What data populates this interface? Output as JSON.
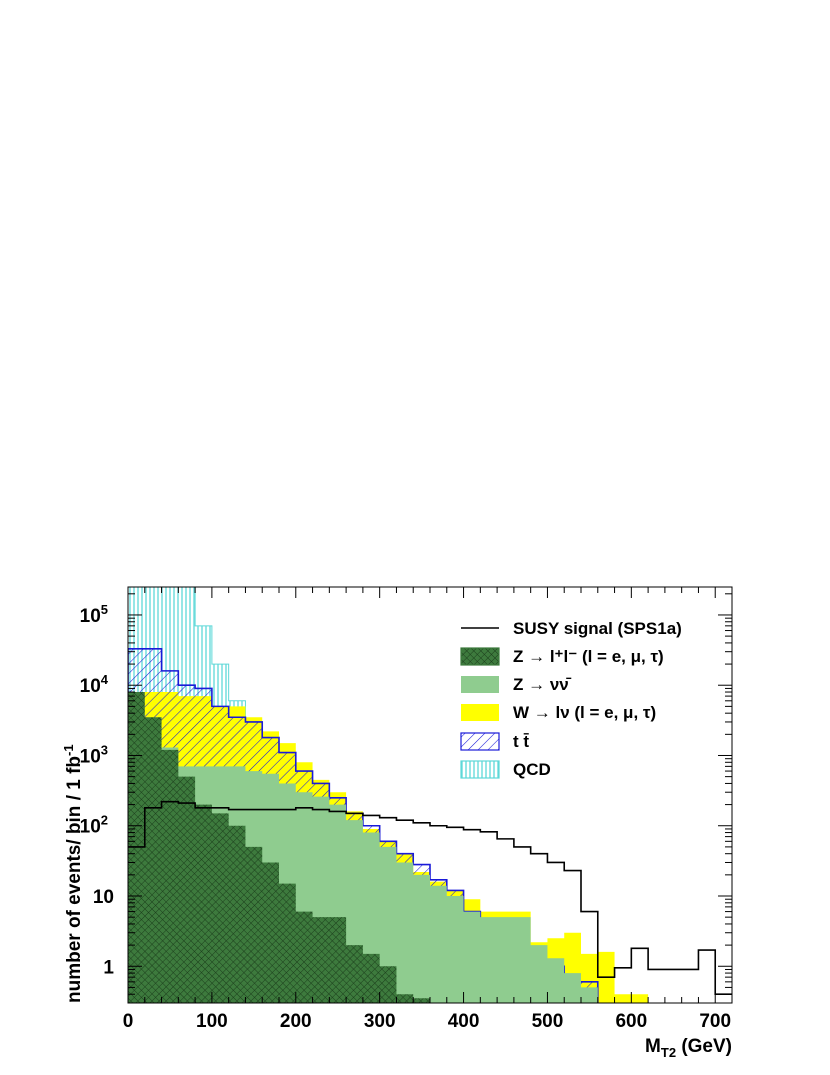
{
  "chart_data": {
    "type": "histogram",
    "x_bin_edges": [
      0,
      20,
      40,
      60,
      80,
      100,
      120,
      140,
      160,
      180,
      200,
      220,
      240,
      260,
      280,
      300,
      320,
      340,
      360,
      380,
      400,
      420,
      440,
      460,
      480,
      500,
      520,
      540,
      560,
      580,
      600,
      620,
      640,
      660,
      680,
      700,
      720
    ],
    "xlabel": "M",
    "xlabel_sub": "T2",
    "xlabel_unit": " (GeV)",
    "ylabel": "number of events/ bin / 1 fb",
    "ylabel_sup": "-1",
    "y_scale": "log",
    "xlim": [
      0,
      720
    ],
    "ylim": [
      0.3,
      250000
    ],
    "x_ticks": [
      "0",
      "100",
      "200",
      "300",
      "400",
      "500",
      "600",
      "700"
    ],
    "x_tick_values": [
      0,
      100,
      200,
      300,
      400,
      500,
      600,
      700
    ],
    "y_ticks": [
      {
        "value": 1,
        "base": "1",
        "exp": ""
      },
      {
        "value": 10,
        "base": "10",
        "exp": ""
      },
      {
        "value": 100,
        "base": "10",
        "exp": "2"
      },
      {
        "value": 1000,
        "base": "10",
        "exp": "3"
      },
      {
        "value": 10000,
        "base": "10",
        "exp": "4"
      },
      {
        "value": 100000,
        "base": "10",
        "exp": "5"
      }
    ],
    "legend_position": "top-right",
    "series": [
      {
        "id": "qcd",
        "name": "QCD",
        "style": "vertical-hatch",
        "color": "#5ed8d8",
        "values": [
          250000,
          250000,
          250000,
          250000,
          70000,
          20000,
          6000,
          2500,
          0,
          0,
          0,
          0,
          0,
          0,
          0,
          0,
          0,
          0,
          0,
          0,
          0,
          0,
          0,
          0,
          0,
          0,
          0,
          0,
          0,
          0,
          0,
          0,
          0,
          0,
          0,
          0
        ]
      },
      {
        "id": "w",
        "name": "W → lν (l = e, μ, τ)",
        "style": "fill",
        "color": "#ffff00",
        "values": [
          8000,
          8000,
          8000,
          7000,
          7000,
          5000,
          5000,
          3500,
          2200,
          1500,
          800,
          450,
          300,
          160,
          90,
          60,
          40,
          22,
          16,
          12,
          9,
          6,
          6,
          6,
          2.2,
          2.5,
          3,
          1.5,
          1.6,
          0.4,
          0.4,
          0,
          0,
          0,
          0,
          0
        ]
      },
      {
        "id": "tt",
        "name": "t t̄",
        "style": "diagonal-hatch",
        "color": "#1a1ad8",
        "values": [
          33000,
          33000,
          16000,
          10000,
          9000,
          5000,
          3500,
          3000,
          1800,
          1100,
          600,
          400,
          250,
          150,
          100,
          60,
          40,
          28,
          17,
          12,
          6,
          3.5,
          2,
          1.4,
          1.2,
          1,
          0.6,
          0.6,
          0,
          0,
          0,
          0,
          0,
          0,
          0,
          0
        ]
      },
      {
        "id": "znn",
        "name": "Z → νν̄",
        "style": "fill",
        "color": "#8fcc8f",
        "values": [
          1000,
          1000,
          1300,
          700,
          700,
          700,
          700,
          600,
          550,
          400,
          300,
          260,
          200,
          120,
          80,
          50,
          30,
          20,
          14,
          10,
          6,
          5,
          5,
          5,
          2,
          1.3,
          0.8,
          0.5,
          0,
          0,
          0,
          0,
          0,
          0,
          0,
          0
        ]
      },
      {
        "id": "zll",
        "name": "Z → l⁺l⁻ (l = e, μ, τ)",
        "style": "crosshatch",
        "color": "#3d7a3d",
        "values": [
          8000,
          3500,
          1200,
          500,
          200,
          150,
          100,
          50,
          30,
          15,
          6,
          5,
          5,
          2,
          1.5,
          1,
          0.4,
          0.35,
          0,
          0,
          0,
          0,
          0,
          0,
          0,
          0,
          0,
          0,
          0,
          0,
          0,
          0,
          0,
          0,
          0,
          0
        ]
      },
      {
        "id": "susy",
        "name": "SUSY signal (SPS1a)",
        "style": "line",
        "color": "#000000",
        "values": [
          50,
          180,
          220,
          210,
          180,
          180,
          170,
          170,
          170,
          170,
          180,
          170,
          160,
          150,
          140,
          130,
          120,
          110,
          100,
          95,
          88,
          82,
          65,
          50,
          40,
          30,
          23,
          6,
          0.7,
          0.95,
          1.8,
          0.9,
          0.9,
          0.9,
          1.7,
          0.4
        ]
      }
    ]
  }
}
